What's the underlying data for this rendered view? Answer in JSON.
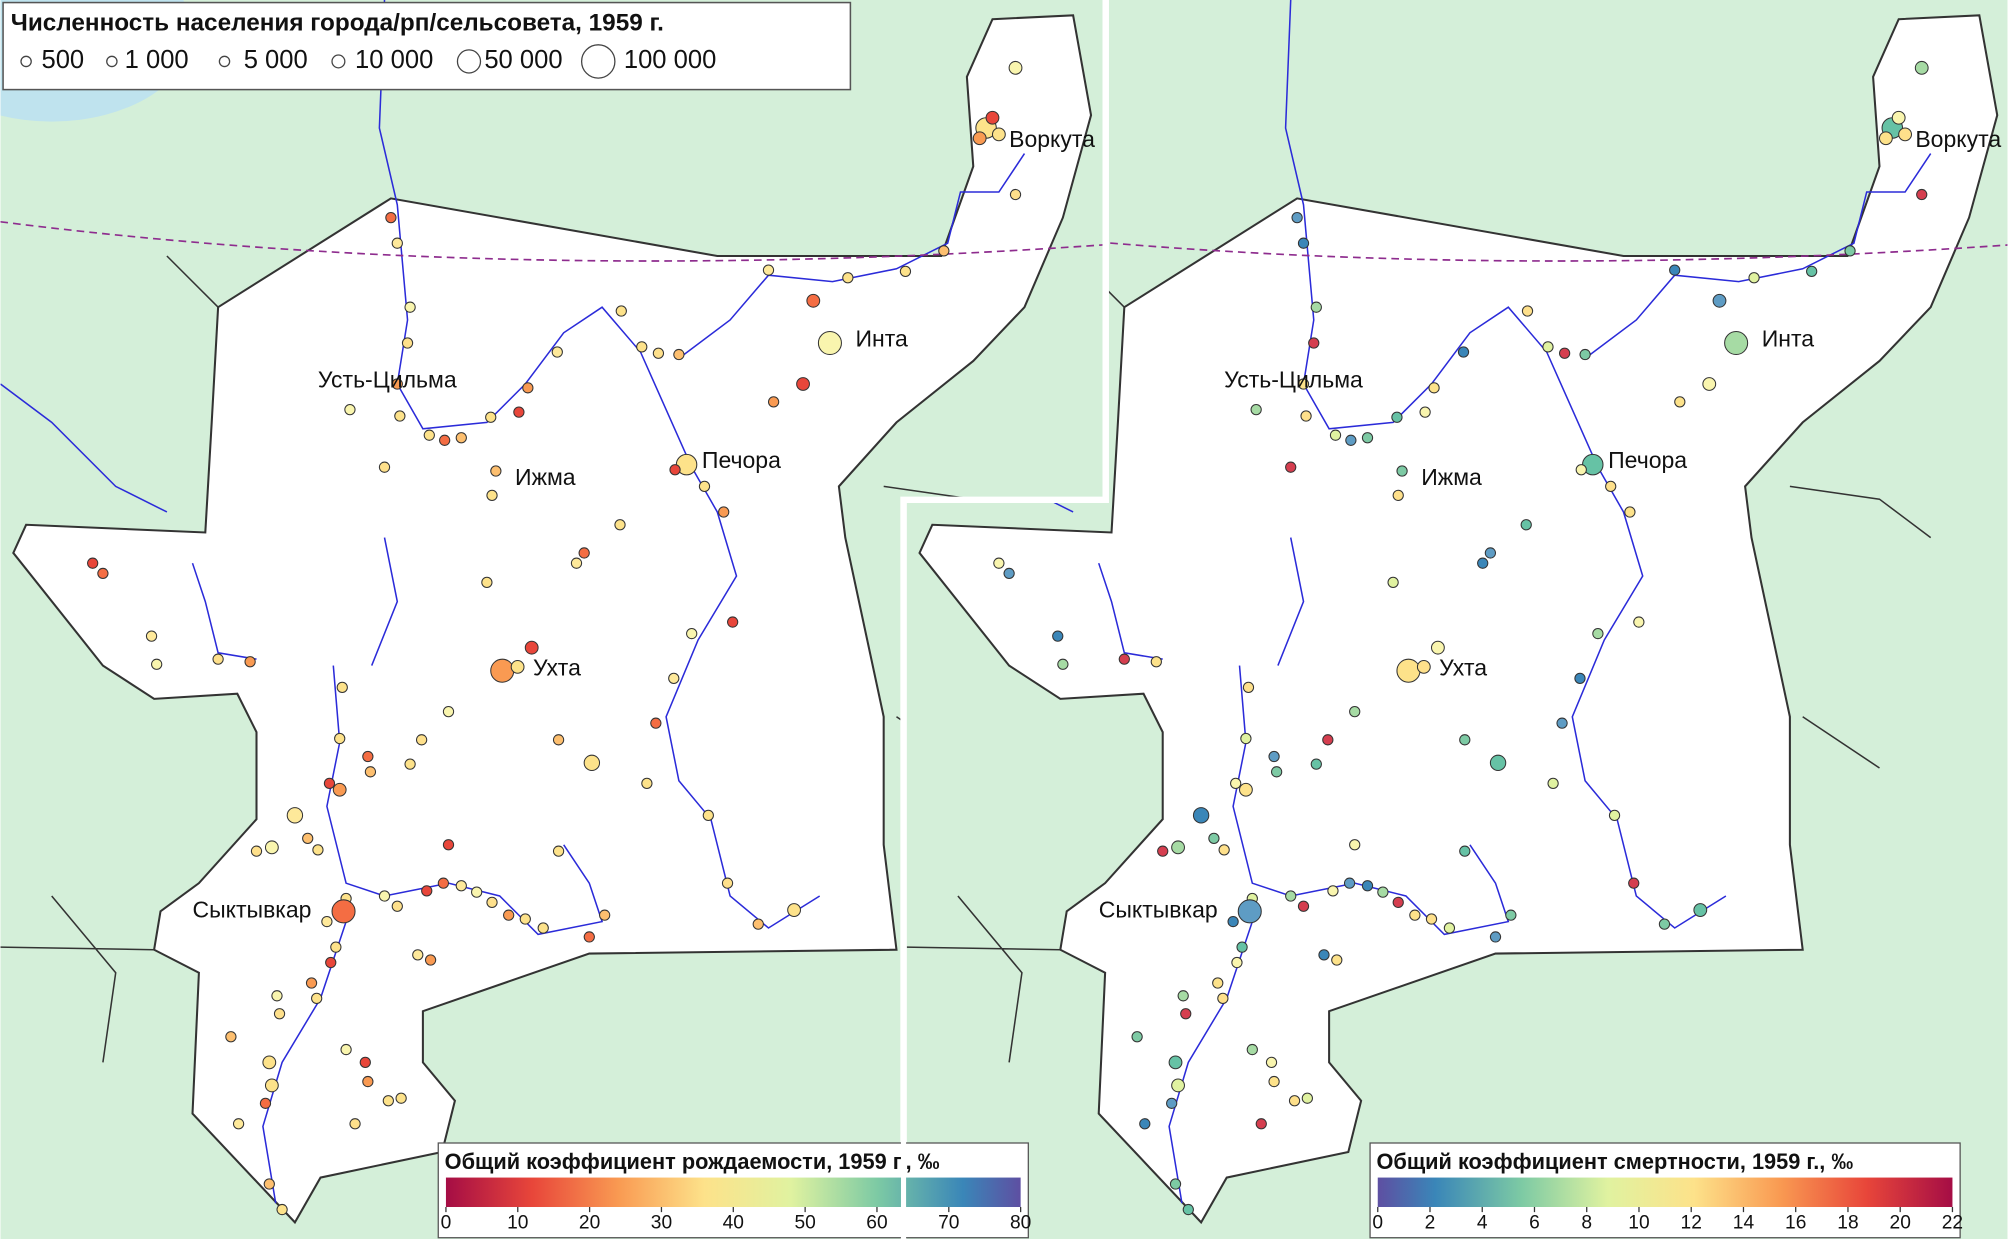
{
  "size_legend": {
    "title": "Численность населения города/рп/сельсовета, 1959 г.",
    "labels": [
      "500",
      "1 000",
      "5 000",
      "10 000",
      "50 000",
      "100 000"
    ]
  },
  "cities": [
    "Воркута",
    "Инта",
    "Усть-Цильма",
    "Печора",
    "Ижма",
    "Ухта",
    "Сыктывкар"
  ],
  "maps": [
    {
      "colorbar": {
        "title": "Общий коэффициент рождаемости, 1959 г., ‰",
        "lim": [
          0,
          80
        ],
        "ticks": [
          0,
          10,
          20,
          30,
          40,
          50,
          60,
          70,
          80
        ]
      }
    },
    {
      "colorbar": {
        "title": "Общий коэффициент смертности, 1959 г., ‰",
        "lim": [
          0,
          22
        ],
        "ticks": [
          0,
          2,
          4,
          6,
          8,
          10,
          12,
          14,
          16,
          18,
          20,
          22
        ]
      }
    }
  ]
}
